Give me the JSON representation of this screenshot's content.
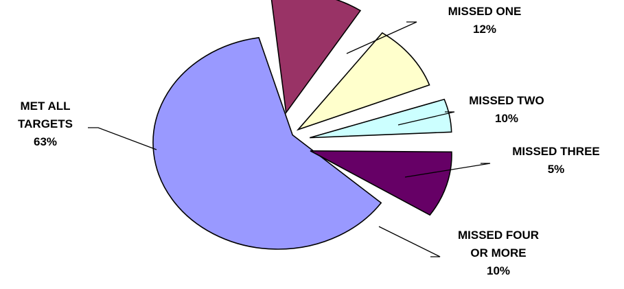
{
  "chart_data": {
    "type": "pie",
    "slices": [
      {
        "label": [
          "MET ALL",
          "TARGETS"
        ],
        "value": 63,
        "display": "63%",
        "color": "#9999ff"
      },
      {
        "label": [
          "MISSED ONE"
        ],
        "value": 12,
        "display": "12%",
        "color": "#993366"
      },
      {
        "label": [
          "MISSED TWO"
        ],
        "value": 10,
        "display": "10%",
        "color": "#ffffcc"
      },
      {
        "label": [
          "MISSED THREE"
        ],
        "value": 5,
        "display": "5%",
        "color": "#ccffff"
      },
      {
        "label": [
          "MISSED FOUR",
          "OR MORE"
        ],
        "value": 10,
        "display": "10%",
        "color": "#660066"
      }
    ]
  }
}
